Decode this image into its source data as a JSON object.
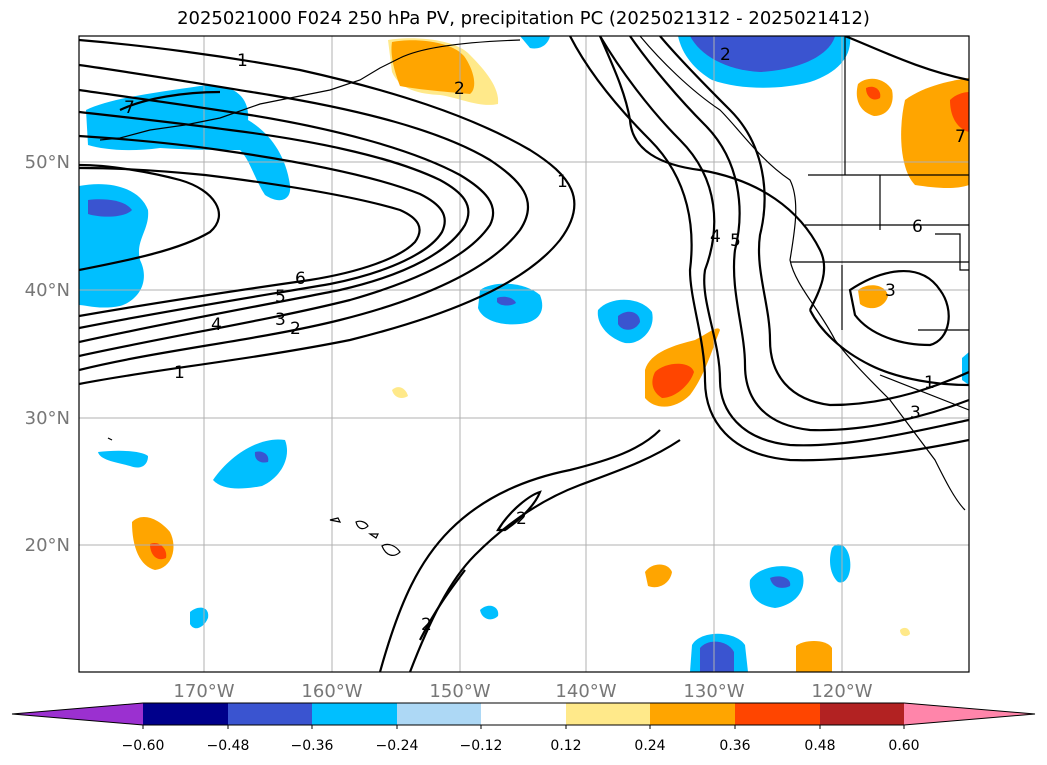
{
  "title": "2025021000 F024 250 hPa PV, precipitation PC (2025021312 - 2025021412)",
  "map": {
    "lat_labels": [
      "50°N",
      "40°N",
      "30°N",
      "20°N"
    ],
    "lon_labels": [
      "170°W",
      "160°W",
      "150°W",
      "140°W",
      "130°W",
      "120°W"
    ],
    "grid": true,
    "contour_labels": [
      {
        "text": "1"
      },
      {
        "text": "7"
      },
      {
        "text": "2"
      },
      {
        "text": "2"
      },
      {
        "text": "1"
      },
      {
        "text": "6"
      },
      {
        "text": "5"
      },
      {
        "text": "4"
      },
      {
        "text": "3"
      },
      {
        "text": "2"
      },
      {
        "text": "1"
      },
      {
        "text": "4"
      },
      {
        "text": "5"
      },
      {
        "text": "6"
      },
      {
        "text": "3"
      },
      {
        "text": "3"
      },
      {
        "text": "1"
      },
      {
        "text": "7"
      },
      {
        "text": "2"
      },
      {
        "text": "2"
      }
    ]
  },
  "colorbar": {
    "tick_labels": [
      "−0.60",
      "−0.48",
      "−0.36",
      "−0.24",
      "−0.12",
      "0.12",
      "0.24",
      "0.36",
      "0.48",
      "0.60"
    ],
    "colors": [
      "#9b30d0",
      "#00008b",
      "#3a54d0",
      "#00bfff",
      "#add8f5",
      "#ffffff",
      "#ffe98a",
      "#ffa500",
      "#ff4500",
      "#b22222",
      "#ff85aa"
    ]
  }
}
